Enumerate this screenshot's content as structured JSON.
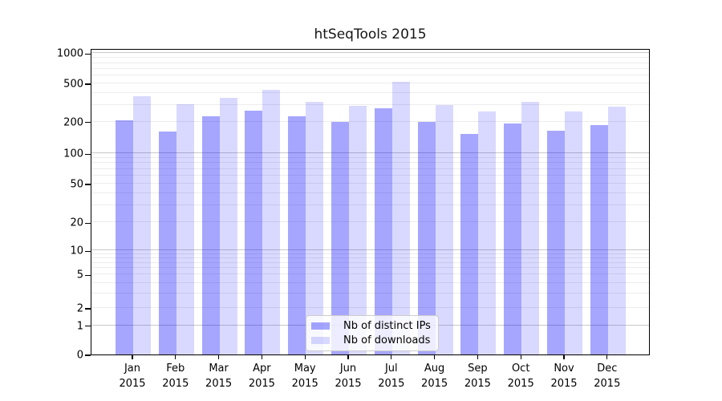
{
  "title": "htSeqTools 2015",
  "chart_data": {
    "type": "bar",
    "title": "htSeqTools 2015",
    "x_months": [
      "Jan",
      "Feb",
      "Mar",
      "Apr",
      "May",
      "Jun",
      "Jul",
      "Aug",
      "Sep",
      "Oct",
      "Nov",
      "Dec"
    ],
    "x_year": "2015",
    "series": [
      {
        "name": "Nb of distinct IPs",
        "color": "rgba(0,0,255,0.35)",
        "values": [
          208,
          161,
          228,
          260,
          228,
          200,
          276,
          201,
          154,
          192,
          163,
          185
        ]
      },
      {
        "name": "Nb of downloads",
        "color": "rgba(0,0,255,0.15)",
        "values": [
          368,
          303,
          356,
          431,
          323,
          294,
          521,
          296,
          255,
          320,
          257,
          286
        ]
      }
    ],
    "y_ticks": [
      1000,
      500,
      200,
      100,
      50,
      20,
      10,
      5,
      2,
      1,
      0
    ],
    "y_major_gridlines": [
      1,
      10,
      100,
      1000
    ],
    "y_minor_gridlines": [
      2,
      3,
      4,
      5,
      6,
      7,
      8,
      9,
      20,
      30,
      40,
      50,
      60,
      70,
      80,
      90,
      200,
      300,
      400,
      500,
      600,
      700,
      800,
      900
    ],
    "axis": {
      "ylim": [
        0,
        1000
      ],
      "scale": "log-with-zero",
      "grid": "horizontal",
      "legend_position": "lower center"
    },
    "scale_anchors": [
      [
        0,
        0.0
      ],
      [
        1,
        0.095
      ],
      [
        2,
        0.1518
      ],
      [
        5,
        0.2609
      ],
      [
        10,
        0.3394
      ],
      [
        20,
        0.4311
      ],
      [
        50,
        0.5576
      ],
      [
        100,
        0.6563
      ],
      [
        200,
        0.7599
      ],
      [
        500,
        0.8848
      ],
      [
        1000,
        0.9834
      ]
    ],
    "colors": {
      "major_grid": "#c9c9c9",
      "minor_grid": "#ececec",
      "axis": "#000000",
      "bar_ips": "#a7a7f9",
      "bar_downloads": "#dbdbfa"
    }
  }
}
